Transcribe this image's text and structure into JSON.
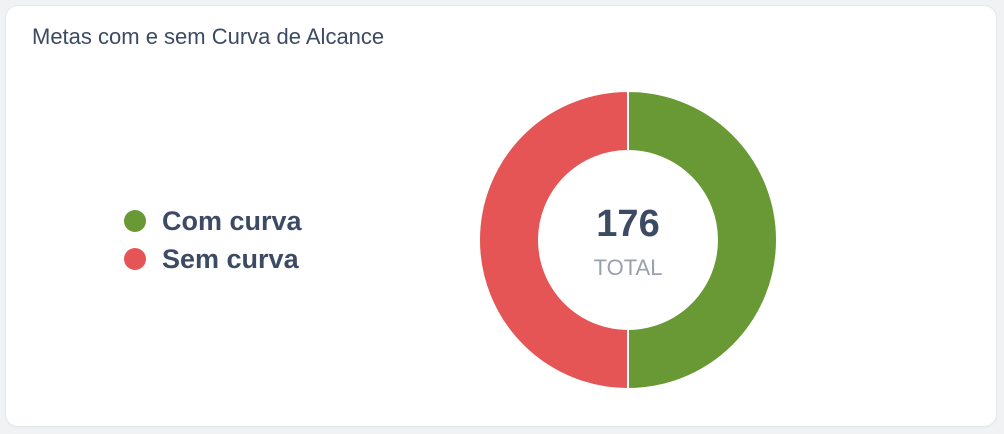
{
  "card": {
    "title": "Metas com e sem Curva de Alcance"
  },
  "colors": {
    "com_curva": "#689935",
    "sem_curva": "#e65555",
    "text": "#3c4a63",
    "subtext": "#9aa1ac"
  },
  "chart_data": {
    "type": "pie",
    "donut": true,
    "categories": [
      "Com curva",
      "Sem curva"
    ],
    "values": [
      88,
      88
    ],
    "center_value": "176",
    "center_label": "TOTAL",
    "legend": "left"
  }
}
